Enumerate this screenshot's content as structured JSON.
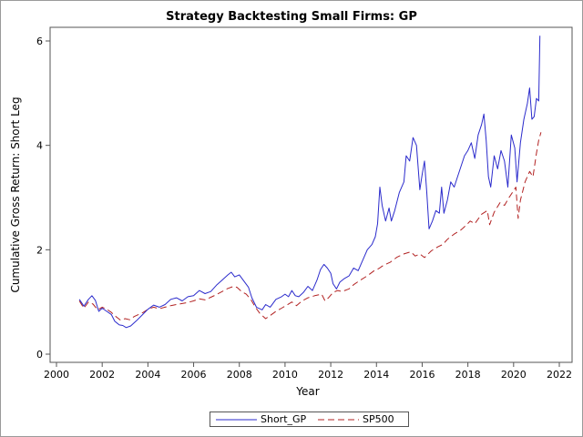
{
  "chart_data": {
    "type": "line",
    "title": "Strategy Backtesting Small Firms: GP",
    "xlabel": "Year",
    "ylabel": "Cumulative Gross Return: Short Leg",
    "xlim": [
      2000,
      2022
    ],
    "ylim": [
      0,
      6.2
    ],
    "x_ticks": [
      2000,
      2002,
      2004,
      2006,
      2008,
      2010,
      2012,
      2014,
      2016,
      2018,
      2020,
      2022
    ],
    "y_ticks": [
      0,
      2,
      4,
      6
    ],
    "grid": false,
    "legend_position": "bottom",
    "series": [
      {
        "name": "Short_GP",
        "color": "#2b2bcc",
        "dash": "solid",
        "points": [
          [
            2001.0,
            1.05
          ],
          [
            2001.2,
            0.92
          ],
          [
            2001.4,
            1.05
          ],
          [
            2001.55,
            1.12
          ],
          [
            2001.7,
            1.03
          ],
          [
            2001.85,
            0.82
          ],
          [
            2002.0,
            0.88
          ],
          [
            2002.2,
            0.82
          ],
          [
            2002.4,
            0.76
          ],
          [
            2002.55,
            0.63
          ],
          [
            2002.75,
            0.56
          ],
          [
            2002.9,
            0.55
          ],
          [
            2003.05,
            0.51
          ],
          [
            2003.25,
            0.54
          ],
          [
            2003.5,
            0.64
          ],
          [
            2003.75,
            0.75
          ],
          [
            2004.0,
            0.86
          ],
          [
            2004.25,
            0.94
          ],
          [
            2004.5,
            0.9
          ],
          [
            2004.75,
            0.95
          ],
          [
            2005.0,
            1.05
          ],
          [
            2005.25,
            1.08
          ],
          [
            2005.5,
            1.02
          ],
          [
            2005.75,
            1.1
          ],
          [
            2006.0,
            1.12
          ],
          [
            2006.25,
            1.22
          ],
          [
            2006.5,
            1.16
          ],
          [
            2006.75,
            1.2
          ],
          [
            2007.0,
            1.32
          ],
          [
            2007.25,
            1.42
          ],
          [
            2007.5,
            1.52
          ],
          [
            2007.65,
            1.57
          ],
          [
            2007.8,
            1.48
          ],
          [
            2008.0,
            1.52
          ],
          [
            2008.2,
            1.4
          ],
          [
            2008.4,
            1.28
          ],
          [
            2008.55,
            1.08
          ],
          [
            2008.75,
            0.9
          ],
          [
            2009.0,
            0.85
          ],
          [
            2009.15,
            0.95
          ],
          [
            2009.35,
            0.9
          ],
          [
            2009.6,
            1.05
          ],
          [
            2009.85,
            1.1
          ],
          [
            2010.0,
            1.15
          ],
          [
            2010.15,
            1.1
          ],
          [
            2010.3,
            1.22
          ],
          [
            2010.45,
            1.12
          ],
          [
            2010.6,
            1.1
          ],
          [
            2010.8,
            1.18
          ],
          [
            2011.0,
            1.3
          ],
          [
            2011.2,
            1.22
          ],
          [
            2011.4,
            1.42
          ],
          [
            2011.55,
            1.62
          ],
          [
            2011.7,
            1.72
          ],
          [
            2011.85,
            1.65
          ],
          [
            2012.0,
            1.55
          ],
          [
            2012.1,
            1.35
          ],
          [
            2012.25,
            1.25
          ],
          [
            2012.4,
            1.38
          ],
          [
            2012.6,
            1.45
          ],
          [
            2012.8,
            1.5
          ],
          [
            2013.0,
            1.65
          ],
          [
            2013.2,
            1.6
          ],
          [
            2013.4,
            1.8
          ],
          [
            2013.6,
            2.0
          ],
          [
            2013.8,
            2.1
          ],
          [
            2013.95,
            2.25
          ],
          [
            2014.05,
            2.5
          ],
          [
            2014.15,
            3.2
          ],
          [
            2014.25,
            2.85
          ],
          [
            2014.4,
            2.55
          ],
          [
            2014.55,
            2.8
          ],
          [
            2014.65,
            2.55
          ],
          [
            2014.8,
            2.75
          ],
          [
            2015.0,
            3.1
          ],
          [
            2015.2,
            3.3
          ],
          [
            2015.3,
            3.8
          ],
          [
            2015.45,
            3.7
          ],
          [
            2015.6,
            4.15
          ],
          [
            2015.75,
            4.0
          ],
          [
            2015.9,
            3.15
          ],
          [
            2016.0,
            3.45
          ],
          [
            2016.1,
            3.7
          ],
          [
            2016.2,
            3.1
          ],
          [
            2016.3,
            2.4
          ],
          [
            2016.45,
            2.55
          ],
          [
            2016.6,
            2.75
          ],
          [
            2016.75,
            2.7
          ],
          [
            2016.85,
            3.2
          ],
          [
            2016.95,
            2.7
          ],
          [
            2017.1,
            2.95
          ],
          [
            2017.25,
            3.3
          ],
          [
            2017.4,
            3.2
          ],
          [
            2017.55,
            3.4
          ],
          [
            2017.7,
            3.6
          ],
          [
            2017.85,
            3.8
          ],
          [
            2018.0,
            3.9
          ],
          [
            2018.15,
            4.05
          ],
          [
            2018.3,
            3.75
          ],
          [
            2018.45,
            4.2
          ],
          [
            2018.6,
            4.4
          ],
          [
            2018.7,
            4.6
          ],
          [
            2018.8,
            4.1
          ],
          [
            2018.9,
            3.4
          ],
          [
            2019.0,
            3.2
          ],
          [
            2019.15,
            3.8
          ],
          [
            2019.3,
            3.55
          ],
          [
            2019.45,
            3.9
          ],
          [
            2019.6,
            3.7
          ],
          [
            2019.75,
            3.2
          ],
          [
            2019.9,
            4.2
          ],
          [
            2020.05,
            3.95
          ],
          [
            2020.15,
            3.3
          ],
          [
            2020.3,
            4.05
          ],
          [
            2020.45,
            4.5
          ],
          [
            2020.6,
            4.8
          ],
          [
            2020.7,
            5.1
          ],
          [
            2020.8,
            4.5
          ],
          [
            2020.9,
            4.55
          ],
          [
            2021.0,
            4.9
          ],
          [
            2021.1,
            4.85
          ],
          [
            2021.15,
            6.1
          ]
        ]
      },
      {
        "name": "SP500",
        "color": "#b22222",
        "dash": "dashed",
        "points": [
          [
            2001.0,
            1.02
          ],
          [
            2001.2,
            0.88
          ],
          [
            2001.4,
            1.0
          ],
          [
            2001.6,
            0.96
          ],
          [
            2001.8,
            0.85
          ],
          [
            2002.0,
            0.9
          ],
          [
            2002.2,
            0.86
          ],
          [
            2002.4,
            0.8
          ],
          [
            2002.6,
            0.72
          ],
          [
            2002.8,
            0.65
          ],
          [
            2003.0,
            0.68
          ],
          [
            2003.2,
            0.66
          ],
          [
            2003.4,
            0.72
          ],
          [
            2003.6,
            0.76
          ],
          [
            2003.8,
            0.8
          ],
          [
            2004.0,
            0.86
          ],
          [
            2004.25,
            0.9
          ],
          [
            2004.5,
            0.87
          ],
          [
            2004.75,
            0.9
          ],
          [
            2005.0,
            0.93
          ],
          [
            2005.25,
            0.95
          ],
          [
            2005.5,
            0.97
          ],
          [
            2005.75,
            0.99
          ],
          [
            2006.0,
            1.02
          ],
          [
            2006.25,
            1.06
          ],
          [
            2006.5,
            1.04
          ],
          [
            2006.75,
            1.09
          ],
          [
            2007.0,
            1.14
          ],
          [
            2007.25,
            1.2
          ],
          [
            2007.5,
            1.26
          ],
          [
            2007.75,
            1.3
          ],
          [
            2007.9,
            1.28
          ],
          [
            2008.1,
            1.2
          ],
          [
            2008.3,
            1.15
          ],
          [
            2008.5,
            1.05
          ],
          [
            2008.7,
            0.9
          ],
          [
            2008.9,
            0.78
          ],
          [
            2009.15,
            0.68
          ],
          [
            2009.35,
            0.74
          ],
          [
            2009.6,
            0.82
          ],
          [
            2009.85,
            0.88
          ],
          [
            2010.0,
            0.92
          ],
          [
            2010.3,
            1.0
          ],
          [
            2010.5,
            0.93
          ],
          [
            2010.75,
            1.02
          ],
          [
            2011.0,
            1.08
          ],
          [
            2011.3,
            1.12
          ],
          [
            2011.6,
            1.15
          ],
          [
            2011.75,
            1.02
          ],
          [
            2011.9,
            1.08
          ],
          [
            2012.1,
            1.18
          ],
          [
            2012.3,
            1.22
          ],
          [
            2012.5,
            1.2
          ],
          [
            2012.8,
            1.25
          ],
          [
            2013.0,
            1.33
          ],
          [
            2013.3,
            1.42
          ],
          [
            2013.6,
            1.5
          ],
          [
            2013.9,
            1.6
          ],
          [
            2014.1,
            1.64
          ],
          [
            2014.3,
            1.7
          ],
          [
            2014.6,
            1.76
          ],
          [
            2014.9,
            1.86
          ],
          [
            2015.2,
            1.92
          ],
          [
            2015.5,
            1.96
          ],
          [
            2015.7,
            1.88
          ],
          [
            2015.9,
            1.92
          ],
          [
            2016.1,
            1.85
          ],
          [
            2016.4,
            1.98
          ],
          [
            2016.7,
            2.06
          ],
          [
            2016.9,
            2.1
          ],
          [
            2017.1,
            2.2
          ],
          [
            2017.4,
            2.3
          ],
          [
            2017.7,
            2.38
          ],
          [
            2017.95,
            2.48
          ],
          [
            2018.1,
            2.55
          ],
          [
            2018.3,
            2.5
          ],
          [
            2018.6,
            2.68
          ],
          [
            2018.85,
            2.75
          ],
          [
            2018.95,
            2.48
          ],
          [
            2019.15,
            2.72
          ],
          [
            2019.4,
            2.9
          ],
          [
            2019.6,
            2.85
          ],
          [
            2019.8,
            3.0
          ],
          [
            2019.95,
            3.1
          ],
          [
            2020.1,
            3.2
          ],
          [
            2020.2,
            2.6
          ],
          [
            2020.3,
            2.95
          ],
          [
            2020.5,
            3.3
          ],
          [
            2020.7,
            3.5
          ],
          [
            2020.85,
            3.4
          ],
          [
            2021.0,
            3.85
          ],
          [
            2021.1,
            4.1
          ],
          [
            2021.2,
            4.25
          ]
        ]
      }
    ]
  }
}
